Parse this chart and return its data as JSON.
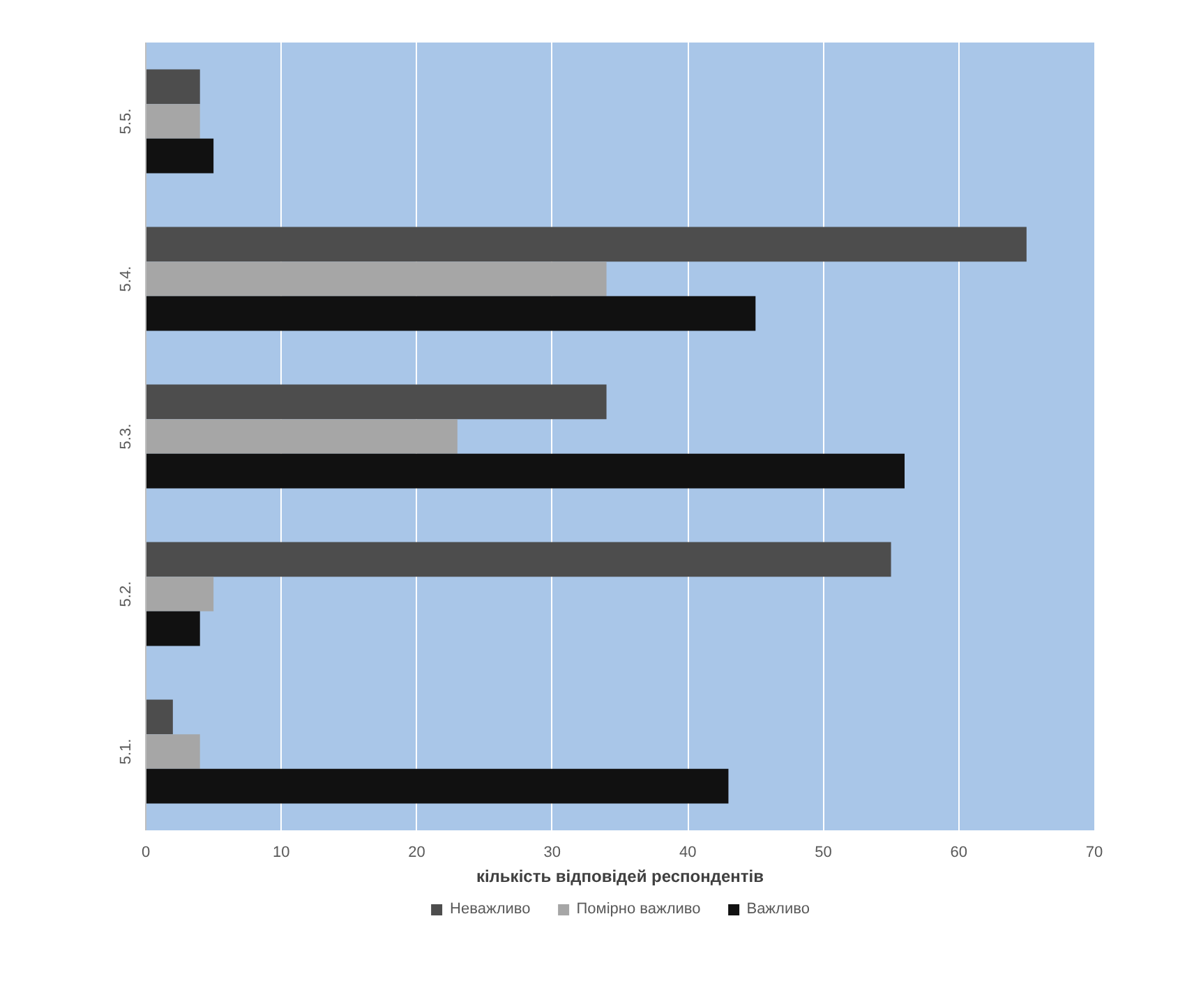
{
  "chart_data": {
    "type": "bar",
    "orientation": "horizontal",
    "xlabel": "кількість відповідей респондентів",
    "categories": [
      "5.5.",
      "5.4.",
      "5.3.",
      "5.2.",
      "5.1."
    ],
    "series": [
      {
        "name": "Неважливо",
        "color": "#4d4d4d",
        "values": [
          4,
          65,
          34,
          55,
          2
        ]
      },
      {
        "name": "Помірно важливо",
        "color": "#a6a6a6",
        "values": [
          4,
          34,
          23,
          5,
          4
        ]
      },
      {
        "name": "Важливо",
        "color": "#111111",
        "values": [
          5,
          45,
          56,
          4,
          43
        ]
      }
    ],
    "xlim": [
      0,
      70
    ],
    "xticks": [
      0,
      10,
      20,
      30,
      40,
      50,
      60,
      70
    ],
    "grid": "x",
    "legend": "bottom"
  }
}
